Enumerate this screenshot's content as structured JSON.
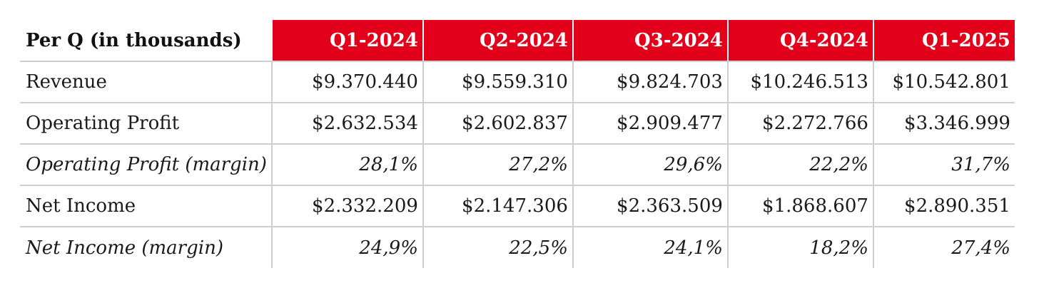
{
  "table": {
    "header_label": "Per Q (in thousands)",
    "columns": [
      "Q1-2024",
      "Q2-2024",
      "Q3-2024",
      "Q4-2024",
      "Q1-2025"
    ],
    "rows": [
      {
        "label": "Revenue",
        "italic": false,
        "values": [
          "$9.370.440",
          "$9.559.310",
          "$9.824.703",
          "$10.246.513",
          "$10.542.801"
        ]
      },
      {
        "label": "Operating Profit",
        "italic": false,
        "values": [
          "$2.632.534",
          "$2.602.837",
          "$2.909.477",
          "$2.272.766",
          "$3.346.999"
        ]
      },
      {
        "label": "Operating Profit (margin)",
        "italic": true,
        "values": [
          "28,1%",
          "27,2%",
          "29,6%",
          "22,2%",
          "31,7%"
        ]
      },
      {
        "label": "Net Income",
        "italic": false,
        "values": [
          "$2.332.209",
          "$2.147.306",
          "$2.363.509",
          "$1.868.607",
          "$2.890.351"
        ]
      },
      {
        "label": "Net Income (margin)",
        "italic": true,
        "values": [
          "24,9%",
          "22,5%",
          "24,1%",
          "18,2%",
          "27,4%"
        ]
      }
    ]
  },
  "colors": {
    "header_accent": "#e2001a",
    "header_text": "#ffffff",
    "grid_line": "#cfcfcf"
  }
}
